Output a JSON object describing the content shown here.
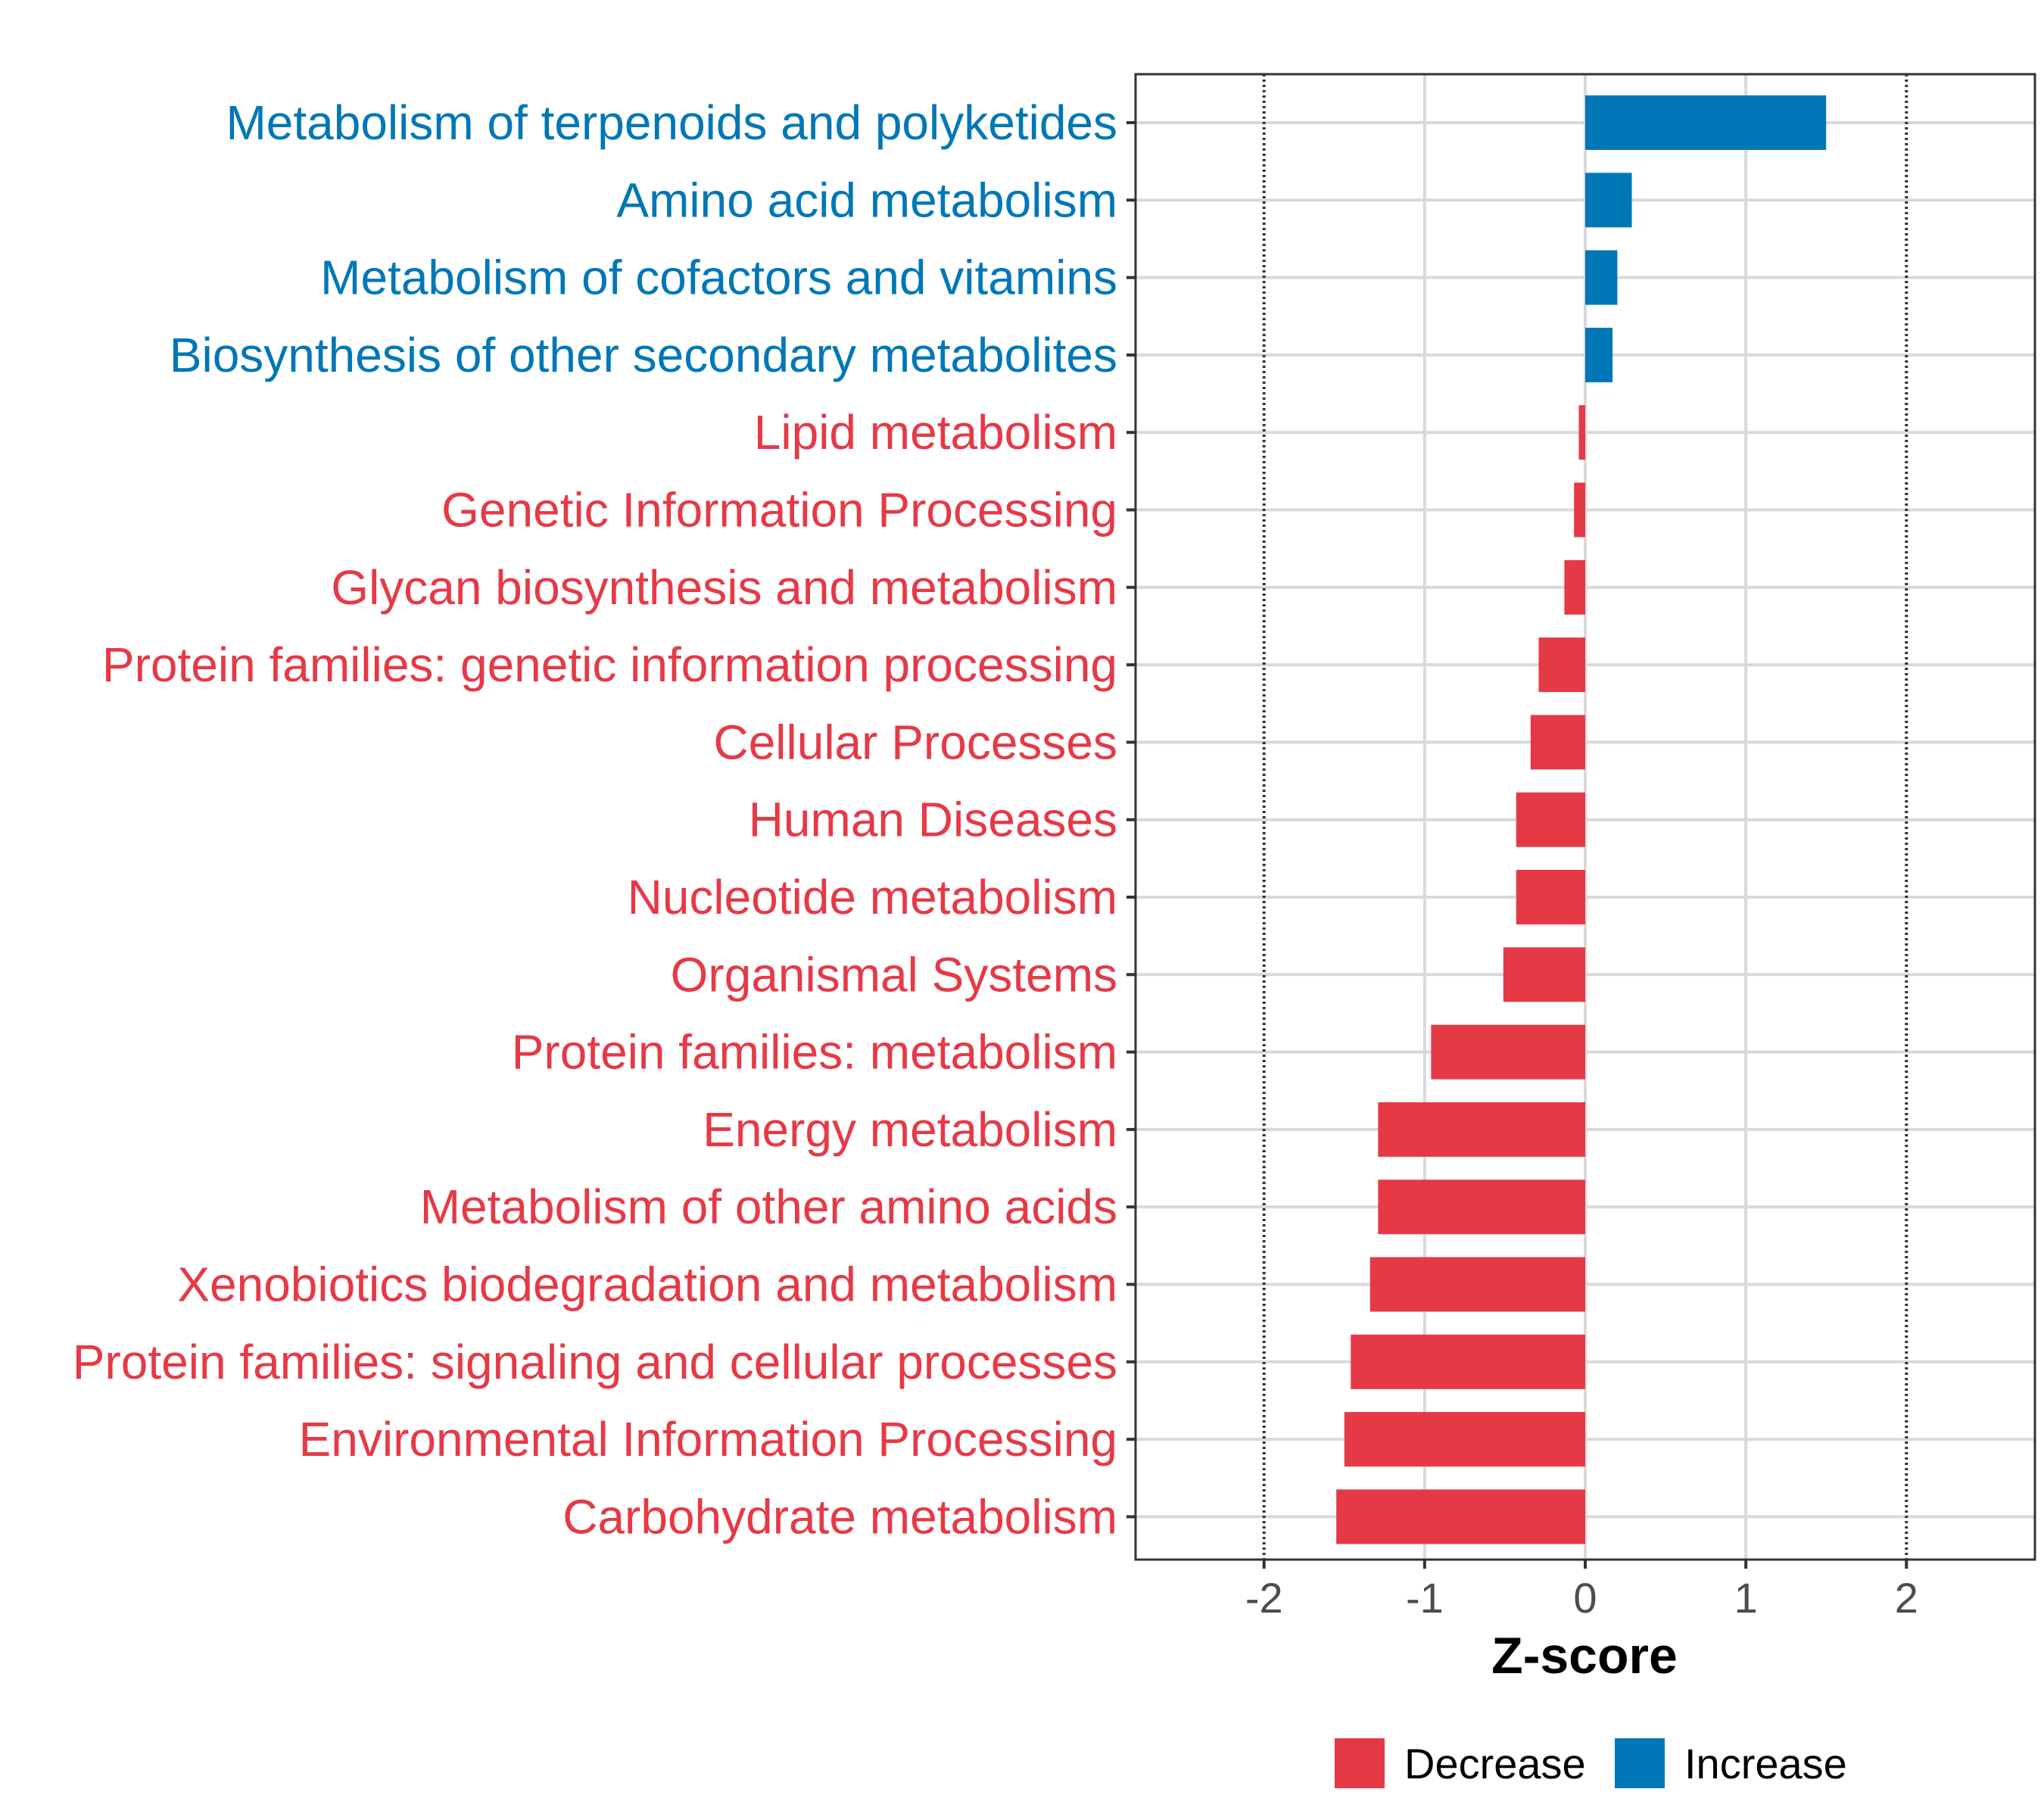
{
  "chart_data": {
    "type": "bar",
    "orientation": "horizontal",
    "categories": [
      "Metabolism of terpenoids and polyketides",
      "Amino acid metabolism",
      "Metabolism of cofactors and vitamins",
      "Biosynthesis of other secondary metabolites",
      "Lipid metabolism",
      "Genetic Information Processing",
      "Glycan biosynthesis and metabolism",
      "Protein families: genetic information processing",
      "Cellular Processes",
      "Human Diseases",
      "Nucleotide metabolism",
      "Organismal Systems",
      "Protein families: metabolism",
      "Energy metabolism",
      "Metabolism of other amino acids",
      "Xenobiotics biodegradation and metabolism",
      "Protein families: signaling and cellular processes",
      "Environmental Information Processing",
      "Carbohydrate metabolism"
    ],
    "values": [
      1.5,
      0.29,
      0.2,
      0.17,
      -0.04,
      -0.07,
      -0.13,
      -0.29,
      -0.34,
      -0.43,
      -0.43,
      -0.51,
      -0.96,
      -1.29,
      -1.29,
      -1.34,
      -1.46,
      -1.5,
      -1.55
    ],
    "groups": [
      "Increase",
      "Increase",
      "Increase",
      "Increase",
      "Decrease",
      "Decrease",
      "Decrease",
      "Decrease",
      "Decrease",
      "Decrease",
      "Decrease",
      "Decrease",
      "Decrease",
      "Decrease",
      "Decrease",
      "Decrease",
      "Decrease",
      "Decrease",
      "Decrease"
    ],
    "xlabel": "Z-score",
    "xlim": [
      -2.8,
      2.8
    ],
    "xticks": [
      -2,
      -1,
      0,
      1,
      2
    ],
    "xtick_labels": [
      "-2",
      "-1",
      "0",
      "1",
      "2"
    ],
    "reference_lines": [
      -2,
      2
    ],
    "grid": true,
    "legend": {
      "position": "bottom",
      "entries": [
        {
          "name": "Decrease",
          "color": "#E63946"
        },
        {
          "name": "Increase",
          "color": "#0077B6"
        }
      ]
    }
  }
}
